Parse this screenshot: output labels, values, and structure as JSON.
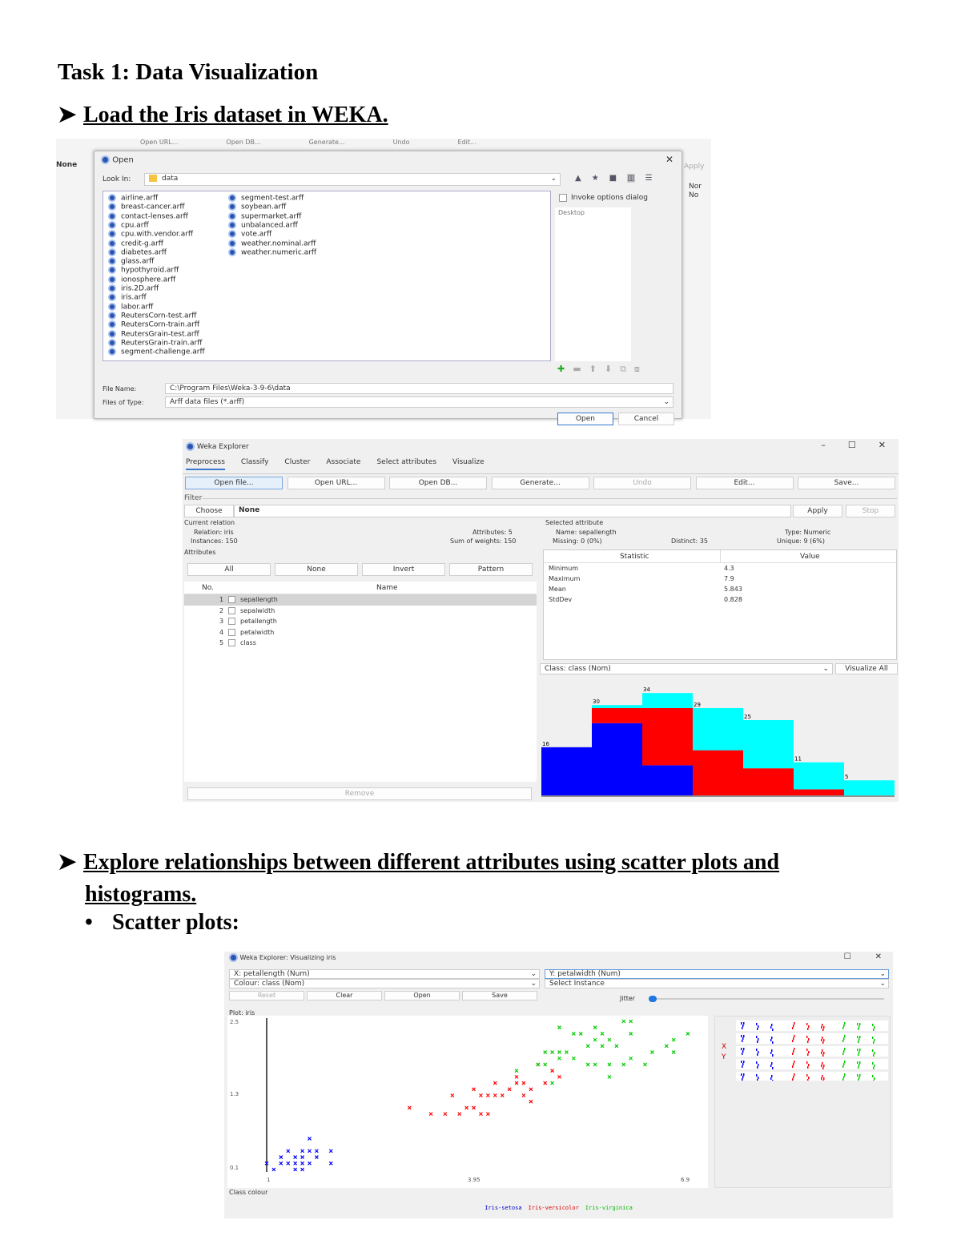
{
  "heading": "Task 1: Data Visualization",
  "bullets": [
    {
      "text": "Load the Iris dataset in WEKA."
    },
    {
      "text": "Explore relationships between different attributes using scatter plots and",
      "text2": "histograms."
    }
  ],
  "sub_bullet": "Scatter plots:",
  "open_dialog": {
    "bg_buttons": [
      "Open URL...",
      "Open DB...",
      "Generate...",
      "Undo",
      "Edit..."
    ],
    "bg_side": {
      "none": "None",
      "apply": "Apply",
      "nor": "Nor",
      "no": "No"
    },
    "title": "Open",
    "look_in_label": "Look In:",
    "look_in_value": "data",
    "files": [
      "airline.arff",
      "breast-cancer.arff",
      "contact-lenses.arff",
      "cpu.arff",
      "cpu.with.vendor.arff",
      "credit-g.arff",
      "diabetes.arff",
      "glass.arff",
      "hypothyroid.arff",
      "ionosphere.arff",
      "iris.2D.arff",
      "iris.arff",
      "labor.arff",
      "ReutersCorn-test.arff",
      "ReutersCorn-train.arff",
      "ReutersGrain-test.arff",
      "ReutersGrain-train.arff",
      "segment-challenge.arff",
      "segment-test.arff",
      "soybean.arff",
      "supermarket.arff",
      "unbalanced.arff",
      "vote.arff",
      "weather.nominal.arff",
      "weather.numeric.arff"
    ],
    "invoke_options": "Invoke options dialog",
    "bookmark": "Desktop",
    "file_name_label": "File Name:",
    "file_name_value": "C:\\Program Files\\Weka-3-9-6\\data",
    "file_type_label": "Files of Type:",
    "file_type_value": "Arff data files (*.arff)",
    "open_button": "Open",
    "cancel_button": "Cancel"
  },
  "explorer": {
    "title": "Weka Explorer",
    "tabs": [
      "Preprocess",
      "Classify",
      "Cluster",
      "Associate",
      "Select attributes",
      "Visualize"
    ],
    "toolbar": [
      "Open file...",
      "Open URL...",
      "Open DB...",
      "Generate...",
      "Undo",
      "Edit...",
      "Save..."
    ],
    "filter_label": "Filter",
    "choose": "Choose",
    "filter_value": "None",
    "apply": "Apply",
    "stop": "Stop",
    "current_relation": {
      "label": "Current relation",
      "relation": "Relation: iris",
      "instances": "Instances: 150",
      "attributes": "Attributes: 5",
      "sum_weights": "Sum of weights: 150"
    },
    "attributes": {
      "label": "Attributes",
      "buttons": [
        "All",
        "None",
        "Invert",
        "Pattern"
      ],
      "col_no": "No.",
      "col_name": "Name",
      "rows": [
        {
          "no": "1",
          "name": "sepallength"
        },
        {
          "no": "2",
          "name": "sepalwidth"
        },
        {
          "no": "3",
          "name": "petallength"
        },
        {
          "no": "4",
          "name": "petalwidth"
        },
        {
          "no": "5",
          "name": "class"
        }
      ],
      "remove": "Remove"
    },
    "selected": {
      "label": "Selected attribute",
      "name": "Name: sepallength",
      "type": "Type: Numeric",
      "missing": "Missing: 0 (0%)",
      "distinct": "Distinct: 35",
      "unique": "Unique: 9 (6%)",
      "col_stat": "Statistic",
      "col_val": "Value",
      "stats": [
        {
          "s": "Minimum",
          "v": "4.3"
        },
        {
          "s": "Maximum",
          "v": "7.9"
        },
        {
          "s": "Mean",
          "v": "5.843"
        },
        {
          "s": "StdDev",
          "v": "0.828"
        }
      ]
    },
    "class_select": "Class: class (Nom)",
    "visualize_all": "Visualize All"
  },
  "chart_data": [
    {
      "type": "bar",
      "stacked": true,
      "categories": [
        "bin1",
        "bin2",
        "bin3",
        "bin4",
        "bin5",
        "bin6",
        "bin7"
      ],
      "totals": [
        "16",
        "30",
        "34",
        "29",
        "25",
        "11",
        "5"
      ],
      "series": [
        {
          "color": "#0000ff",
          "values": [
            16,
            24,
            10,
            0,
            0,
            0,
            0
          ]
        },
        {
          "color": "#ff0000",
          "values": [
            0,
            5,
            19,
            15,
            9,
            2,
            0
          ]
        },
        {
          "color": "#00ffff",
          "values": [
            0,
            1,
            5,
            14,
            16,
            9,
            5
          ]
        }
      ]
    },
    {
      "type": "scatter",
      "xlabel": "X: petallength (Num)",
      "ylabel": "Y: petalwidth (Num)",
      "x_ticks": [
        "1",
        "3.95",
        "6.9"
      ],
      "y_ticks": [
        "2.5",
        "1.3",
        "0.1"
      ],
      "xlim": [
        1,
        6.9
      ],
      "ylim": [
        0.1,
        2.5
      ],
      "series": [
        {
          "name": "Iris-setosa",
          "color": "#0000ff",
          "points": [
            [
              1.4,
              0.2
            ],
            [
              1.3,
              0.2
            ],
            [
              1.5,
              0.2
            ],
            [
              1.4,
              0.3
            ],
            [
              1.7,
              0.4
            ],
            [
              1.5,
              0.1
            ],
            [
              1.6,
              0.2
            ],
            [
              1.1,
              0.1
            ],
            [
              1.2,
              0.2
            ],
            [
              1.5,
              0.4
            ],
            [
              1.3,
              0.4
            ],
            [
              1.7,
              0.3
            ],
            [
              1.9,
              0.2
            ],
            [
              1.6,
              0.6
            ],
            [
              1.9,
              0.4
            ],
            [
              1.0,
              0.2
            ],
            [
              1.5,
              0.3
            ],
            [
              1.6,
              0.4
            ],
            [
              1.4,
              0.1
            ],
            [
              1.2,
              0.3
            ]
          ]
        },
        {
          "name": "Iris-versicolor",
          "color": "#ff0000",
          "points": [
            [
              4.7,
              1.4
            ],
            [
              4.5,
              1.5
            ],
            [
              4.9,
              1.5
            ],
            [
              4.0,
              1.3
            ],
            [
              4.6,
              1.5
            ],
            [
              3.3,
              1.0
            ],
            [
              4.6,
              1.3
            ],
            [
              3.9,
              1.4
            ],
            [
              3.5,
              1.0
            ],
            [
              4.2,
              1.5
            ],
            [
              4.0,
              1.0
            ],
            [
              3.6,
              1.3
            ],
            [
              4.4,
              1.4
            ],
            [
              4.1,
              1.0
            ],
            [
              3.9,
              1.1
            ],
            [
              4.8,
              1.8
            ],
            [
              4.7,
              1.2
            ],
            [
              4.3,
              1.3
            ],
            [
              5.0,
              1.7
            ],
            [
              3.8,
              1.1
            ],
            [
              3.7,
              1.0
            ],
            [
              5.1,
              1.6
            ],
            [
              4.5,
              1.6
            ],
            [
              4.2,
              1.3
            ],
            [
              3.0,
              1.1
            ],
            [
              4.1,
              1.3
            ]
          ]
        },
        {
          "name": "Iris-virginica",
          "color": "#00cc00",
          "points": [
            [
              6.0,
              2.5
            ],
            [
              5.1,
              1.9
            ],
            [
              5.9,
              2.1
            ],
            [
              5.6,
              1.8
            ],
            [
              5.8,
              2.2
            ],
            [
              6.6,
              2.1
            ],
            [
              4.5,
              1.7
            ],
            [
              6.3,
              1.8
            ],
            [
              5.8,
              1.8
            ],
            [
              6.1,
              2.5
            ],
            [
              5.1,
              2.0
            ],
            [
              5.3,
              1.9
            ],
            [
              5.5,
              2.1
            ],
            [
              5.0,
              2.0
            ],
            [
              5.1,
              2.4
            ],
            [
              5.3,
              2.3
            ],
            [
              5.5,
              1.8
            ],
            [
              6.7,
              2.2
            ],
            [
              6.9,
              2.3
            ],
            [
              5.0,
              1.5
            ],
            [
              5.7,
              2.3
            ],
            [
              4.9,
              2.0
            ],
            [
              6.7,
              2.0
            ],
            [
              4.9,
              1.8
            ],
            [
              5.7,
              2.1
            ],
            [
              6.0,
              1.8
            ],
            [
              4.8,
              1.8
            ],
            [
              6.1,
              1.9
            ],
            [
              5.6,
              2.4
            ],
            [
              5.8,
              1.6
            ],
            [
              6.4,
              2.0
            ],
            [
              5.6,
              2.2
            ],
            [
              5.4,
              2.3
            ],
            [
              6.1,
              2.3
            ],
            [
              5.2,
              2.0
            ]
          ]
        }
      ]
    }
  ],
  "visualizer": {
    "title": "Weka Explorer: Visualizing iris",
    "x_select": "X: petallength (Num)",
    "y_select": "Y: petalwidth (Num)",
    "colour_select": "Colour: class (Nom)",
    "instance_select": "Select Instance",
    "buttons": [
      "Reset",
      "Clear",
      "Open",
      "Save"
    ],
    "jitter": "Jitter",
    "plot_label": "Plot: iris",
    "class_colour_label": "Class colour",
    "legend": [
      "Iris-setosa",
      "Iris-versicolor",
      "Iris-virginica"
    ]
  }
}
